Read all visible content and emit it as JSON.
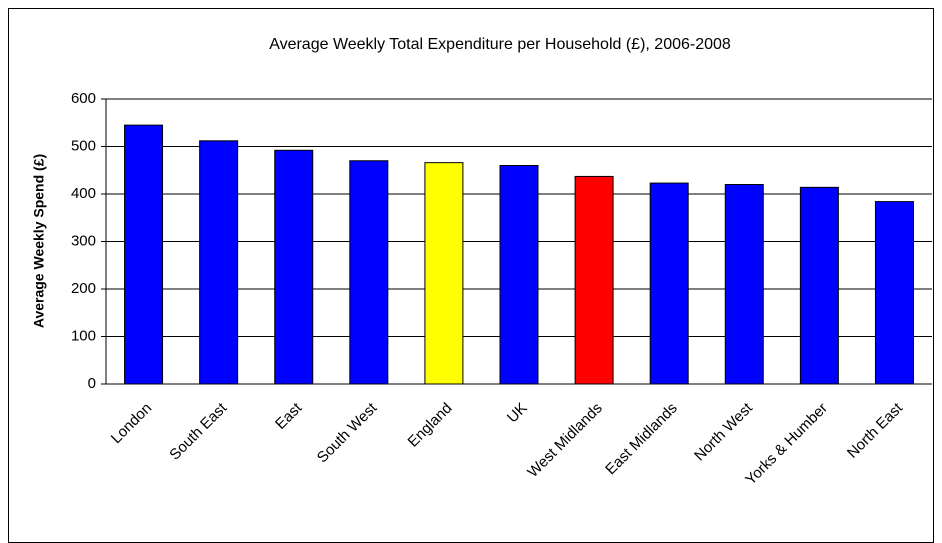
{
  "chart_data": {
    "type": "bar",
    "title": "Average Weekly Total Expenditure per Household (£), 2006-2008",
    "y_label": "Average Weekly Spend (£)",
    "categories": [
      "London",
      "South East",
      "East",
      "South West",
      "England",
      "UK",
      "West Midlands",
      "East Midlands",
      "North West",
      "Yorks & Humber",
      "North East"
    ],
    "values": [
      545,
      512,
      492,
      470,
      466,
      460,
      437,
      423,
      420,
      414,
      384
    ],
    "colors": [
      "#0000ff",
      "#0000ff",
      "#0000ff",
      "#0000ff",
      "#ffff00",
      "#0000ff",
      "#ff0000",
      "#0000ff",
      "#0000ff",
      "#0000ff",
      "#0000ff"
    ],
    "ylim": [
      0,
      600
    ],
    "yticks": [
      0,
      100,
      200,
      300,
      400,
      500,
      600
    ],
    "grid": true
  }
}
